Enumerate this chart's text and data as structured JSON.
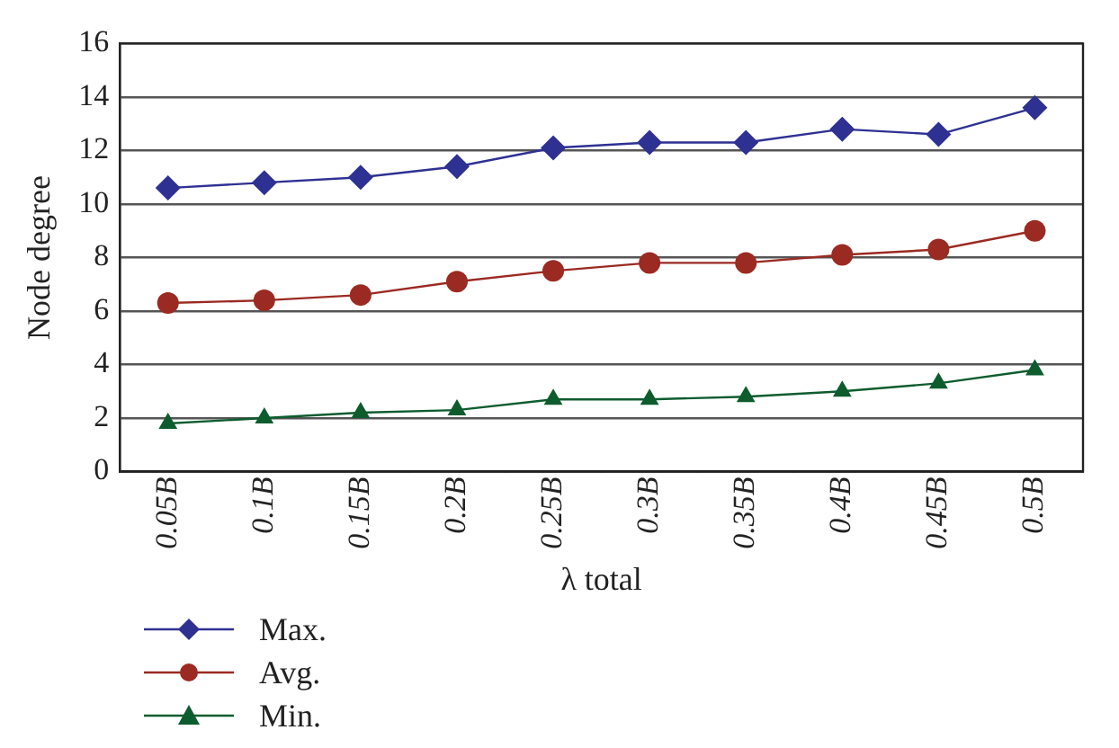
{
  "chart_data": {
    "type": "line",
    "xlabel": "λ total",
    "ylabel": "Node degree",
    "categories": [
      "0.05B",
      "0.1B",
      "0.15B",
      "0.2B",
      "0.25B",
      "0.3B",
      "0.35B",
      "0.4B",
      "0.45B",
      "0.5B"
    ],
    "series": [
      {
        "name": "Max.",
        "color": "#2e3192",
        "marker": "diamond",
        "values": [
          10.6,
          10.8,
          11.0,
          11.4,
          12.1,
          12.3,
          12.3,
          12.8,
          12.6,
          13.6
        ]
      },
      {
        "name": "Avg.",
        "color": "#9b2a22",
        "marker": "circle",
        "values": [
          6.3,
          6.4,
          6.6,
          7.1,
          7.5,
          7.8,
          7.8,
          8.1,
          8.3,
          9.0
        ]
      },
      {
        "name": "Min.",
        "color": "#0d5c2e",
        "marker": "triangle",
        "values": [
          1.8,
          2.0,
          2.2,
          2.3,
          2.7,
          2.7,
          2.8,
          3.0,
          3.3,
          3.8
        ]
      }
    ],
    "ylim": [
      0,
      16
    ],
    "yticks": [
      0,
      2,
      4,
      6,
      8,
      10,
      12,
      14,
      16
    ],
    "grid": "y",
    "legend": "bottom left",
    "line_style": "solid"
  }
}
